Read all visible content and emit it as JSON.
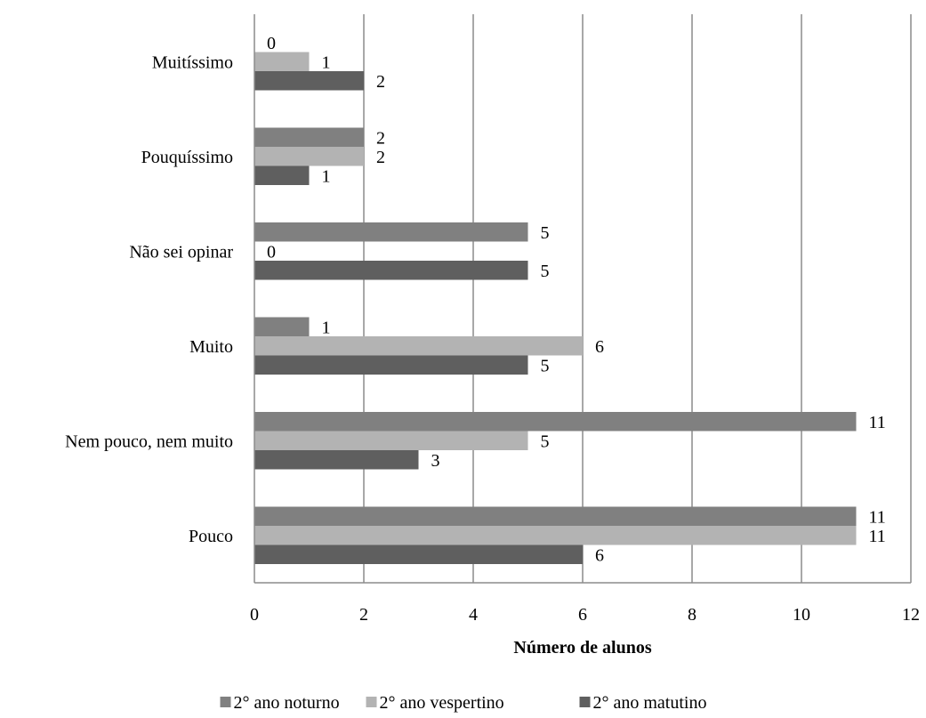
{
  "chart_data": {
    "type": "bar",
    "orientation": "horizontal",
    "categories": [
      "Muitíssimo",
      "Pouquíssimo",
      "Não sei opinar",
      "Muito",
      "Nem pouco, nem muito",
      "Pouco"
    ],
    "series": [
      {
        "name": "2° ano noturno",
        "color": "#808080",
        "values": [
          0,
          2,
          5,
          1,
          11,
          11
        ]
      },
      {
        "name": "2° ano vespertino",
        "color": "#b3b3b3",
        "values": [
          1,
          2,
          0,
          6,
          5,
          11
        ]
      },
      {
        "name": "2° ano matutino",
        "color": "#5f5f5f",
        "values": [
          2,
          1,
          5,
          5,
          3,
          6
        ]
      }
    ],
    "xlabel": "Número de alunos",
    "xlim": [
      0,
      12
    ],
    "xticks": [
      0,
      2,
      4,
      6,
      8,
      10,
      12
    ],
    "grid": "vertical",
    "legend_position": "bottom"
  }
}
